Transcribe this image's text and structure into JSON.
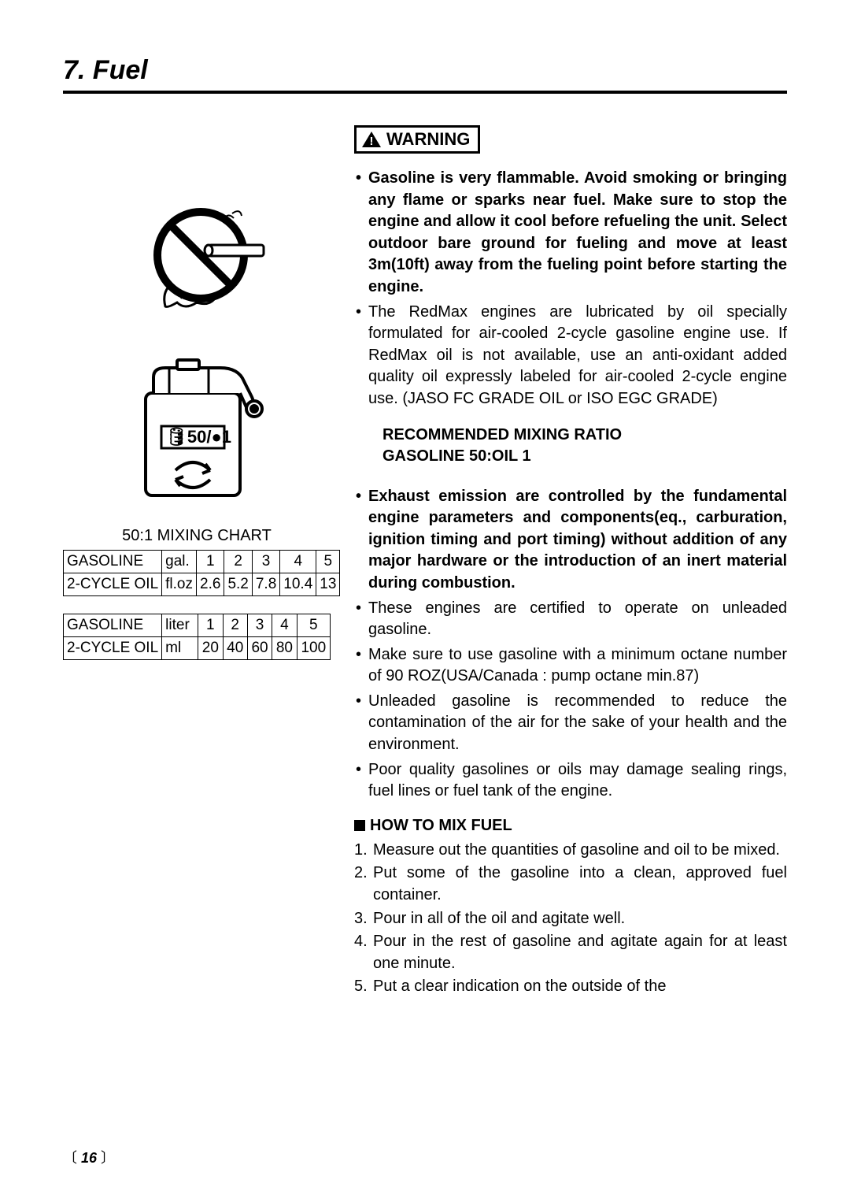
{
  "section_title": "7. Fuel",
  "chart_title": "50:1 MIXING CHART",
  "tables": {
    "imperial": {
      "row1_label": "GASOLINE",
      "row1_unit": "gal.",
      "row1_vals": [
        "1",
        "2",
        "3",
        "4",
        "5"
      ],
      "row2_label": "2-CYCLE OIL",
      "row2_unit": "fl.oz",
      "row2_vals": [
        "2.6",
        "5.2",
        "7.8",
        "10.4",
        "13"
      ]
    },
    "metric": {
      "row1_label": "GASOLINE",
      "row1_unit": "liter",
      "row1_vals": [
        "1",
        "2",
        "3",
        "4",
        "5"
      ],
      "row2_label": "2-CYCLE OIL",
      "row2_unit": "ml",
      "row2_vals": [
        "20",
        "40",
        "60",
        "80",
        "100"
      ]
    }
  },
  "warning_label": "WARNING",
  "bullets_top": [
    {
      "text": "Gasoline is very flammable. Avoid smoking or bringing any flame or sparks near fuel. Make sure to stop the engine and allow it cool before  refueling the unit. Select outdoor bare ground for fueling and move at least 3m(10ft) away from the fueling point before starting the engine.",
      "bold": true
    },
    {
      "text": "The RedMax engines are lubricated by oil specially formulated for air-cooled 2-cycle gasoline engine use. If RedMax oil is not available, use an anti-oxidant added quality oil expressly labeled for air-cooled 2-cycle engine use. (JASO FC GRADE OIL or ISO EGC GRADE)",
      "bold": false
    }
  ],
  "ratio_line1": "RECOMMENDED MIXING RATIO",
  "ratio_line2": "GASOLINE 50:OIL 1",
  "bullets_bottom": [
    {
      "text": "Exhaust emission are controlled by the fundamental engine parameters and components(eq., carburation, ignition timing and port timing) without addition of any major hardware or the introduction of an inert material during combustion.",
      "bold": true
    },
    {
      "text": "These engines are certified to operate on unleaded gasoline.",
      "bold": false
    },
    {
      "text": "Make sure to use gasoline with a minimum octane number of 90 ROZ(USA/Canada : pump octane min.87)",
      "bold": false
    },
    {
      "text": "Unleaded gasoline is recommended to reduce the contamination of the air for the sake of your health and the environment.",
      "bold": false
    },
    {
      "text": "Poor quality gasolines or oils may damage sealing rings, fuel lines or fuel tank of the engine.",
      "bold": false
    }
  ],
  "howto_title": "HOW TO MIX FUEL",
  "steps": [
    "Measure out the quantities of gasoline and oil to be mixed.",
    "Put some of the gasoline into a clean, approved fuel container.",
    "Pour in all of the oil and agitate well.",
    "Pour in the rest of gasoline and agitate again for at least one minute.",
    "Put a clear indication on the outside of the"
  ],
  "page_number": "16",
  "colors": {
    "text": "#000000",
    "bg": "#ffffff",
    "border": "#000000"
  },
  "svgs": {
    "no_fire_icon": {
      "circle_stroke": "#000000",
      "slash_stroke": "#000000"
    },
    "fuel_can": {
      "stroke": "#000000",
      "label": "50/1"
    }
  }
}
